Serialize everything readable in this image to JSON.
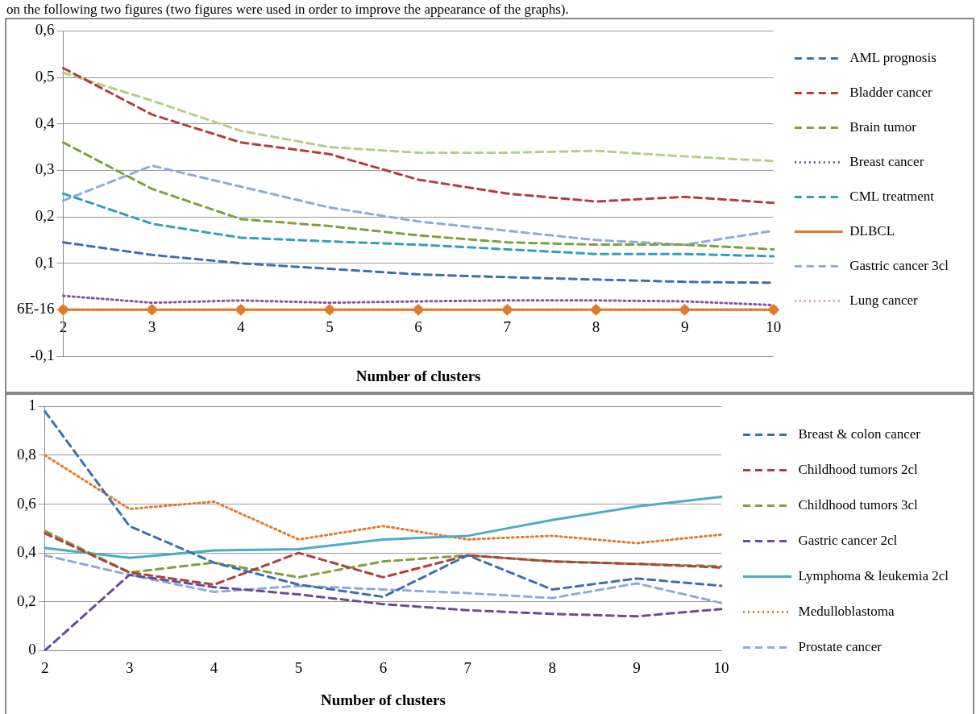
{
  "chart_data": [
    {
      "type": "line",
      "xlabel": "Number of clusters",
      "categories": [
        "2",
        "3",
        "4",
        "5",
        "6",
        "7",
        "8",
        "9",
        "10"
      ],
      "annotations": [
        "on the following two figures (two figures were used in order to improve the appearance of the graphs)."
      ],
      "ylim": [
        -0.1,
        0.6
      ],
      "yticks": [
        {
          "value": -0.1,
          "label": "-0,1"
        },
        {
          "value": 6e-16,
          "label": "6E-16"
        },
        {
          "value": 0.1,
          "label": "0,1"
        },
        {
          "value": 0.2,
          "label": "0,2"
        },
        {
          "value": 0.3,
          "label": "0,3"
        },
        {
          "value": 0.4,
          "label": "0,4"
        },
        {
          "value": 0.5,
          "label": "0,5"
        },
        {
          "value": 0.6,
          "label": "0,6"
        }
      ],
      "grid": "y",
      "legend": "right",
      "series": [
        {
          "name": "AML prognosis",
          "color": "#3c6fb0",
          "line_style": "dashed",
          "values": [
            0.145,
            0.118,
            0.1,
            0.088,
            0.076,
            0.07,
            0.065,
            0.06,
            0.058
          ]
        },
        {
          "name": "Bladder cancer",
          "color": "#b13f3c",
          "line_style": "dashed",
          "values": [
            0.52,
            0.42,
            0.36,
            0.335,
            0.28,
            0.25,
            0.233,
            0.243,
            0.23
          ]
        },
        {
          "name": "Brain tumor",
          "color": "#7fa03a",
          "line_style": "dashed",
          "values": [
            0.36,
            0.26,
            0.195,
            0.18,
            0.16,
            0.145,
            0.14,
            0.14,
            0.13
          ]
        },
        {
          "name": "Breast cancer",
          "color": "#7a5a9c",
          "line_style": "dotted",
          "values": [
            0.03,
            0.015,
            0.02,
            0.015,
            0.018,
            0.02,
            0.02,
            0.018,
            0.01
          ]
        },
        {
          "name": "CML treatment",
          "color": "#2fa0b8",
          "line_style": "dashed",
          "values": [
            0.25,
            0.185,
            0.155,
            0.147,
            0.14,
            0.13,
            0.12,
            0.12,
            0.115
          ]
        },
        {
          "name": "DLBCL",
          "color": "#e07b2c",
          "line_style": "solid",
          "marker": "diamond",
          "values": [
            0,
            0,
            0,
            0,
            0,
            0,
            0,
            0,
            0
          ]
        },
        {
          "name": "Gastric cancer 3cl",
          "color": "#8eaadb",
          "line_style": "dashed",
          "values": [
            0.235,
            0.31,
            0.265,
            0.22,
            0.19,
            0.17,
            0.15,
            0.14,
            0.17
          ]
        },
        {
          "name": "Lung cancer",
          "color": "#e09a9a",
          "line_style": "dotted",
          "marker": "cross",
          "values": [
            0,
            0,
            0,
            0,
            0,
            0,
            0,
            0,
            0
          ]
        },
        {
          "color": "#b5cf8a",
          "line_style": "dashed",
          "values": [
            0.51,
            0.45,
            0.385,
            0.35,
            0.338,
            0.338,
            0.342,
            0.33,
            0.32
          ]
        }
      ]
    },
    {
      "type": "line",
      "xlabel": "Number of clusters",
      "categories": [
        "2",
        "3",
        "4",
        "5",
        "6",
        "7",
        "8",
        "9",
        "10"
      ],
      "ylim": [
        0,
        1
      ],
      "yticks": [
        0,
        {
          "value": 0.2,
          "label": "0,2"
        },
        {
          "value": 0.4,
          "label": "0,4"
        },
        {
          "value": 0.6,
          "label": "0,6"
        },
        {
          "value": 0.8,
          "label": "0,8"
        },
        1
      ],
      "grid": "y",
      "legend": "right",
      "series": [
        {
          "name": "Breast & colon cancer",
          "color": "#3c6fb0",
          "line_style": "dashed",
          "values": [
            0.98,
            0.51,
            0.36,
            0.27,
            0.22,
            0.39,
            0.25,
            0.295,
            0.265
          ]
        },
        {
          "name": "Childhood tumors 2cl",
          "color": "#b13f3c",
          "line_style": "dashed",
          "values": [
            0.48,
            0.32,
            0.27,
            0.4,
            0.3,
            0.39,
            0.365,
            0.355,
            0.34
          ]
        },
        {
          "name": "Childhood tumors 3cl",
          "color": "#7fa03a",
          "line_style": "dashed",
          "values": [
            0.49,
            0.32,
            0.36,
            0.3,
            0.365,
            0.39,
            0.365,
            0.355,
            0.345
          ]
        },
        {
          "name": "Gastric cancer 2cl",
          "color": "#6a4c93",
          "line_style": "dashed",
          "values": [
            0,
            0.31,
            0.26,
            0.23,
            0.19,
            0.165,
            0.15,
            0.14,
            0.17
          ]
        },
        {
          "name": "Lymphoma & leukemia 2cl",
          "color": "#4bacc6",
          "line_style": "solid",
          "values": [
            0.42,
            0.38,
            0.41,
            0.415,
            0.455,
            0.47,
            0.535,
            0.59,
            0.63
          ]
        },
        {
          "name": "Medulloblastoma",
          "color": "#e07b2c",
          "line_style": "dotted",
          "values": [
            0.8,
            0.58,
            0.61,
            0.455,
            0.51,
            0.455,
            0.47,
            0.44,
            0.475
          ]
        },
        {
          "name": "Prostate cancer",
          "color": "#8eaadb",
          "line_style": "dashed",
          "values": [
            0.39,
            0.31,
            0.24,
            0.265,
            0.25,
            0.235,
            0.215,
            0.275,
            0.195
          ]
        }
      ]
    }
  ]
}
